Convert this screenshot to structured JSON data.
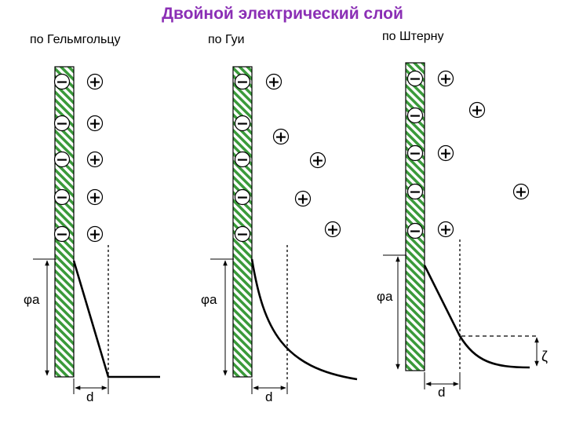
{
  "title": "Двойной электрический слой",
  "panels": [
    {
      "caption": "по Гельмгольцу",
      "phi": "φa",
      "d": "d",
      "zeta": ""
    },
    {
      "caption": "по Гуи",
      "phi": "φa",
      "d": "d",
      "zeta": ""
    },
    {
      "caption": "по Штерну",
      "phi": "φa",
      "d": "d",
      "zeta": "ζ"
    }
  ],
  "symbols": {
    "minus": "−",
    "plus": "+"
  },
  "colors": {
    "title": "#8b2fb5",
    "hatch": "#3a9a3a",
    "line": "#000000"
  }
}
